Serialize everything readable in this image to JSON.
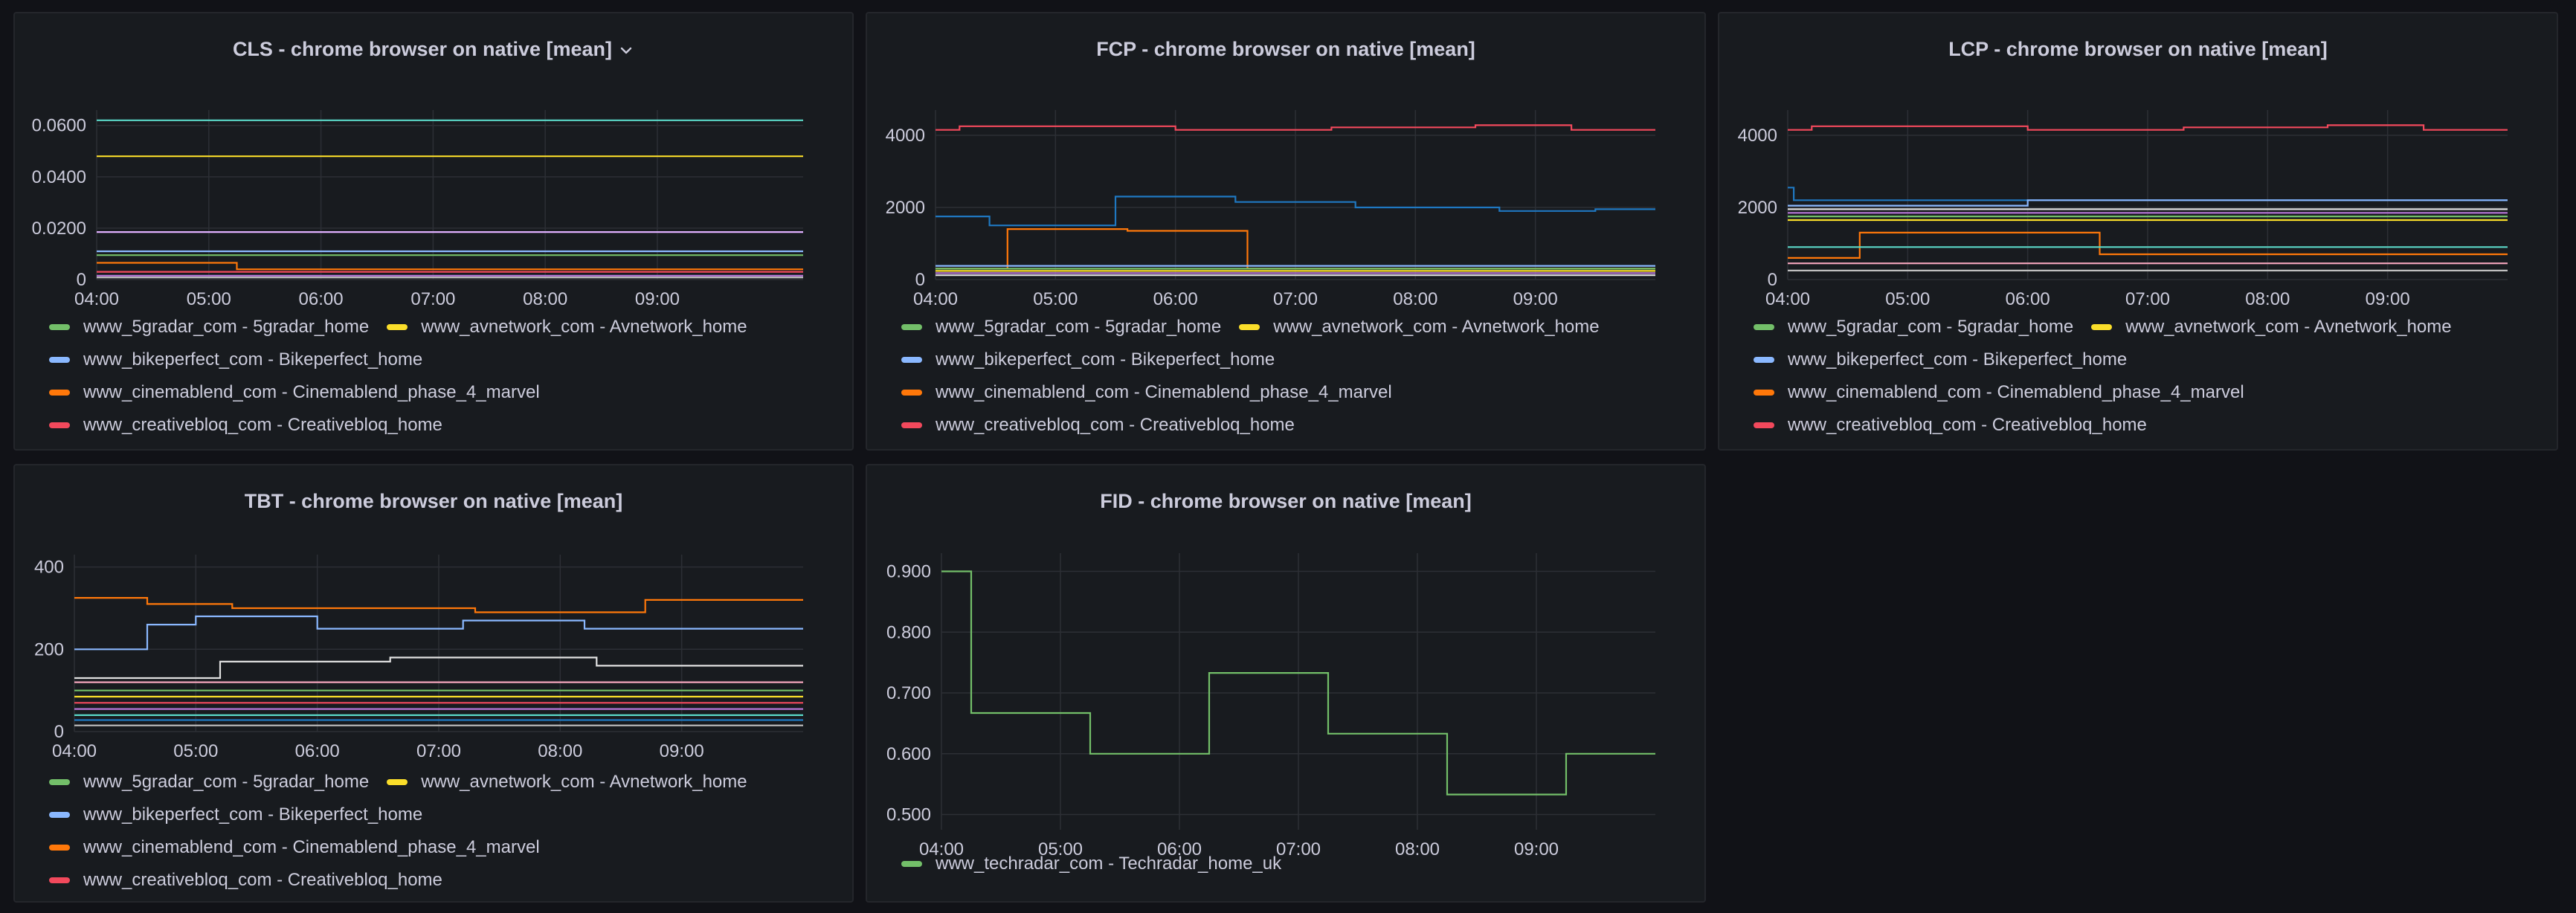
{
  "colors": {
    "green": "#73bf69",
    "yellow": "#fade2a",
    "blue": "#8ab8ff",
    "orange": "#ff780a",
    "red": "#f2495c",
    "grid": "#2c2f35",
    "tick": "#ccccdc"
  },
  "icons": {
    "title_dropdown": "chevron-down-icon"
  },
  "legend_series": [
    {
      "label": "www_5gradar_com - 5gradar_home",
      "color": "#73bf69"
    },
    {
      "label": "www_avnetwork_com - Avnetwork_home",
      "color": "#fade2a"
    },
    {
      "label": "www_bikeperfect_com - Bikeperfect_home",
      "color": "#8ab8ff"
    },
    {
      "label": "www_cinemablend_com - Cinemablend_phase_4_marvel",
      "color": "#ff780a"
    },
    {
      "label": "www_creativebloq_com - Creativebloq_home",
      "color": "#f2495c"
    }
  ],
  "fid_legend": [
    {
      "label": "www_techradar_com - Techradar_home_uk",
      "color": "#73bf69"
    }
  ],
  "chart_data": [
    {
      "id": "cls",
      "title": "CLS - chrome browser on native [mean]",
      "type": "line",
      "x_ticks": [
        "04:00",
        "05:00",
        "06:00",
        "07:00",
        "08:00",
        "09:00"
      ],
      "x_range_hours": [
        0,
        6.3
      ],
      "y_ticks": [
        "0",
        "0.0200",
        "0.0400",
        "0.0600"
      ],
      "y_tick_values": [
        0,
        0.02,
        0.04,
        0.06
      ],
      "ylim": [
        0,
        0.066
      ],
      "grid": true,
      "legend_placement": "bottom",
      "series": [
        {
          "color": "#5ad8c8",
          "x": [
            0,
            6.3
          ],
          "y": [
            0.062,
            0.062
          ]
        },
        {
          "color": "#fade2a",
          "x": [
            0,
            6.3
          ],
          "y": [
            0.048,
            0.048
          ]
        },
        {
          "color": "#e0b0ff",
          "x": [
            0,
            6.3
          ],
          "y": [
            0.0185,
            0.0185
          ]
        },
        {
          "color": "#8ab8ff",
          "x": [
            0,
            6.3
          ],
          "y": [
            0.011,
            0.011
          ]
        },
        {
          "color": "#73bf69",
          "x": [
            0,
            6.3
          ],
          "y": [
            0.0095,
            0.0095
          ]
        },
        {
          "color": "#ff780a",
          "x": [
            0,
            1.25,
            1.25,
            6.3
          ],
          "y": [
            0.0065,
            0.0065,
            0.004,
            0.004
          ]
        },
        {
          "color": "#f2495c",
          "x": [
            0,
            6.3
          ],
          "y": [
            0.003,
            0.003
          ]
        },
        {
          "color": "#b877d9",
          "x": [
            0,
            6.3
          ],
          "y": [
            0.0015,
            0.0015
          ]
        },
        {
          "color": "#c0c0c0",
          "x": [
            0,
            6.3
          ],
          "y": [
            0.0008,
            0.0008
          ]
        }
      ]
    },
    {
      "id": "fcp",
      "title": "FCP - chrome browser on native [mean]",
      "type": "line",
      "x_ticks": [
        "04:00",
        "05:00",
        "06:00",
        "07:00",
        "08:00",
        "09:00"
      ],
      "x_range_hours": [
        0,
        6.0
      ],
      "y_ticks": [
        "0",
        "2000",
        "4000"
      ],
      "y_tick_values": [
        0,
        2000,
        4000
      ],
      "ylim": [
        0,
        4700
      ],
      "grid": true,
      "legend_placement": "bottom",
      "series": [
        {
          "color": "#f2495c",
          "x": [
            0,
            0.2,
            0.2,
            2.0,
            2.0,
            3.3,
            3.3,
            4.5,
            4.5,
            5.3,
            5.3,
            6.0
          ],
          "y": [
            4150,
            4150,
            4250,
            4250,
            4150,
            4150,
            4220,
            4220,
            4280,
            4280,
            4150,
            4150
          ]
        },
        {
          "color": "#1f78c1",
          "x": [
            0,
            0.45,
            0.45,
            1.5,
            1.5,
            2.5,
            2.5,
            3.5,
            3.5,
            4.7,
            4.7,
            5.5,
            5.5,
            6.0
          ],
          "y": [
            1750,
            1750,
            1500,
            1500,
            2300,
            2300,
            2150,
            2150,
            2000,
            2000,
            1900,
            1900,
            1950,
            1950
          ]
        },
        {
          "color": "#ff780a",
          "x": [
            0,
            0.6,
            0.6,
            1.6,
            1.6,
            2.6,
            2.6,
            6.0
          ],
          "y": [
            300,
            300,
            1400,
            1400,
            1350,
            1350,
            300,
            300
          ]
        },
        {
          "color": "#8ab8ff",
          "x": [
            0,
            6.0
          ],
          "y": [
            380,
            380
          ]
        },
        {
          "color": "#73bf69",
          "x": [
            0,
            6.0
          ],
          "y": [
            300,
            300
          ]
        },
        {
          "color": "#fade2a",
          "x": [
            0,
            6.0
          ],
          "y": [
            240,
            240
          ]
        },
        {
          "color": "#b877d9",
          "x": [
            0,
            6.0
          ],
          "y": [
            180,
            180
          ]
        },
        {
          "color": "#e0e0e0",
          "x": [
            0,
            6.0
          ],
          "y": [
            120,
            120
          ]
        }
      ]
    },
    {
      "id": "lcp",
      "title": "LCP - chrome browser on native [mean]",
      "type": "line",
      "x_ticks": [
        "04:00",
        "05:00",
        "06:00",
        "07:00",
        "08:00",
        "09:00"
      ],
      "x_range_hours": [
        0,
        6.0
      ],
      "y_ticks": [
        "0",
        "2000",
        "4000"
      ],
      "y_tick_values": [
        0,
        2000,
        4000
      ],
      "ylim": [
        0,
        4700
      ],
      "grid": true,
      "legend_placement": "bottom",
      "series": [
        {
          "color": "#f2495c",
          "x": [
            0,
            0.2,
            0.2,
            2.0,
            2.0,
            3.3,
            3.3,
            4.5,
            4.5,
            5.3,
            5.3,
            6.0
          ],
          "y": [
            4150,
            4150,
            4250,
            4250,
            4150,
            4150,
            4220,
            4220,
            4280,
            4280,
            4150,
            4150
          ]
        },
        {
          "color": "#1f78c1",
          "x": [
            0,
            0.05,
            0.05,
            6.0
          ],
          "y": [
            2550,
            2550,
            2200,
            2200
          ]
        },
        {
          "color": "#8ab8ff",
          "x": [
            0,
            2.0,
            2.0,
            6.0
          ],
          "y": [
            2050,
            2050,
            2200,
            2200
          ]
        },
        {
          "color": "#e0e0e0",
          "x": [
            0,
            6.0
          ],
          "y": [
            1950,
            1950
          ]
        },
        {
          "color": "#b877d9",
          "x": [
            0,
            6.0
          ],
          "y": [
            1850,
            1850
          ]
        },
        {
          "color": "#73bf69",
          "x": [
            0,
            6.0
          ],
          "y": [
            1750,
            1750
          ]
        },
        {
          "color": "#fade2a",
          "x": [
            0,
            6.0
          ],
          "y": [
            1650,
            1650
          ]
        },
        {
          "color": "#ff780a",
          "x": [
            0,
            0.6,
            0.6,
            2.6,
            2.6,
            6.0
          ],
          "y": [
            600,
            600,
            1300,
            1300,
            700,
            700
          ]
        },
        {
          "color": "#5ad8c8",
          "x": [
            0,
            6.0
          ],
          "y": [
            900,
            900
          ]
        },
        {
          "color": "#f5a6bd",
          "x": [
            0,
            6.0
          ],
          "y": [
            450,
            450
          ]
        },
        {
          "color": "#c0c0c0",
          "x": [
            0,
            6.0
          ],
          "y": [
            250,
            250
          ]
        }
      ]
    },
    {
      "id": "tbt",
      "title": "TBT - chrome browser on native [mean]",
      "type": "line",
      "x_ticks": [
        "04:00",
        "05:00",
        "06:00",
        "07:00",
        "08:00",
        "09:00"
      ],
      "x_range_hours": [
        0,
        6.0
      ],
      "y_ticks": [
        "0",
        "200",
        "400"
      ],
      "y_tick_values": [
        0,
        200,
        400
      ],
      "ylim": [
        0,
        430
      ],
      "grid": true,
      "legend_placement": "bottom",
      "series": [
        {
          "color": "#ff780a",
          "x": [
            0,
            0.6,
            0.6,
            1.3,
            1.3,
            3.3,
            3.3,
            4.7,
            4.7,
            6.0
          ],
          "y": [
            325,
            325,
            310,
            310,
            300,
            300,
            290,
            290,
            320,
            320
          ]
        },
        {
          "color": "#8ab8ff",
          "x": [
            0,
            0.6,
            0.6,
            1.0,
            1.0,
            2.0,
            2.0,
            3.2,
            3.2,
            4.2,
            4.2,
            6.0
          ],
          "y": [
            200,
            200,
            260,
            260,
            280,
            280,
            250,
            250,
            270,
            270,
            250,
            250
          ]
        },
        {
          "color": "#e0e0e0",
          "x": [
            0,
            1.2,
            1.2,
            2.6,
            2.6,
            4.3,
            4.3,
            6.0
          ],
          "y": [
            130,
            130,
            170,
            170,
            180,
            180,
            160,
            160
          ]
        },
        {
          "color": "#f5a6bd",
          "x": [
            0,
            6.0
          ],
          "y": [
            120,
            120
          ]
        },
        {
          "color": "#73bf69",
          "x": [
            0,
            6.0
          ],
          "y": [
            100,
            100
          ]
        },
        {
          "color": "#fade2a",
          "x": [
            0,
            6.0
          ],
          "y": [
            85,
            85
          ]
        },
        {
          "color": "#f2495c",
          "x": [
            0,
            6.0
          ],
          "y": [
            70,
            70
          ]
        },
        {
          "color": "#b877d9",
          "x": [
            0,
            6.0
          ],
          "y": [
            55,
            55
          ]
        },
        {
          "color": "#5ad8c8",
          "x": [
            0,
            6.0
          ],
          "y": [
            40,
            40
          ]
        },
        {
          "color": "#1f78c1",
          "x": [
            0,
            6.0
          ],
          "y": [
            28,
            28
          ]
        },
        {
          "color": "#c0c0c0",
          "x": [
            0,
            6.0
          ],
          "y": [
            15,
            15
          ]
        }
      ]
    },
    {
      "id": "fid",
      "title": "FID - chrome browser on native [mean]",
      "type": "line",
      "x_ticks": [
        "04:00",
        "05:00",
        "06:00",
        "07:00",
        "08:00",
        "09:00"
      ],
      "x_range_hours": [
        0,
        6.0
      ],
      "y_ticks": [
        "0.500",
        "0.600",
        "0.700",
        "0.800",
        "0.900"
      ],
      "y_tick_values": [
        0.5,
        0.6,
        0.7,
        0.8,
        0.9
      ],
      "ylim": [
        0.475,
        0.93
      ],
      "grid": true,
      "legend_placement": "bottom",
      "series": [
        {
          "name": "www_techradar_com - Techradar_home_uk",
          "color": "#73bf69",
          "x": [
            0,
            0.25,
            0.25,
            1.25,
            1.25,
            2.25,
            2.25,
            3.25,
            3.25,
            4.25,
            4.25,
            5.25,
            5.25,
            6.0
          ],
          "y": [
            0.9,
            0.9,
            0.667,
            0.667,
            0.6,
            0.6,
            0.733,
            0.733,
            0.633,
            0.633,
            0.533,
            0.533,
            0.6,
            0.6
          ]
        }
      ]
    }
  ]
}
